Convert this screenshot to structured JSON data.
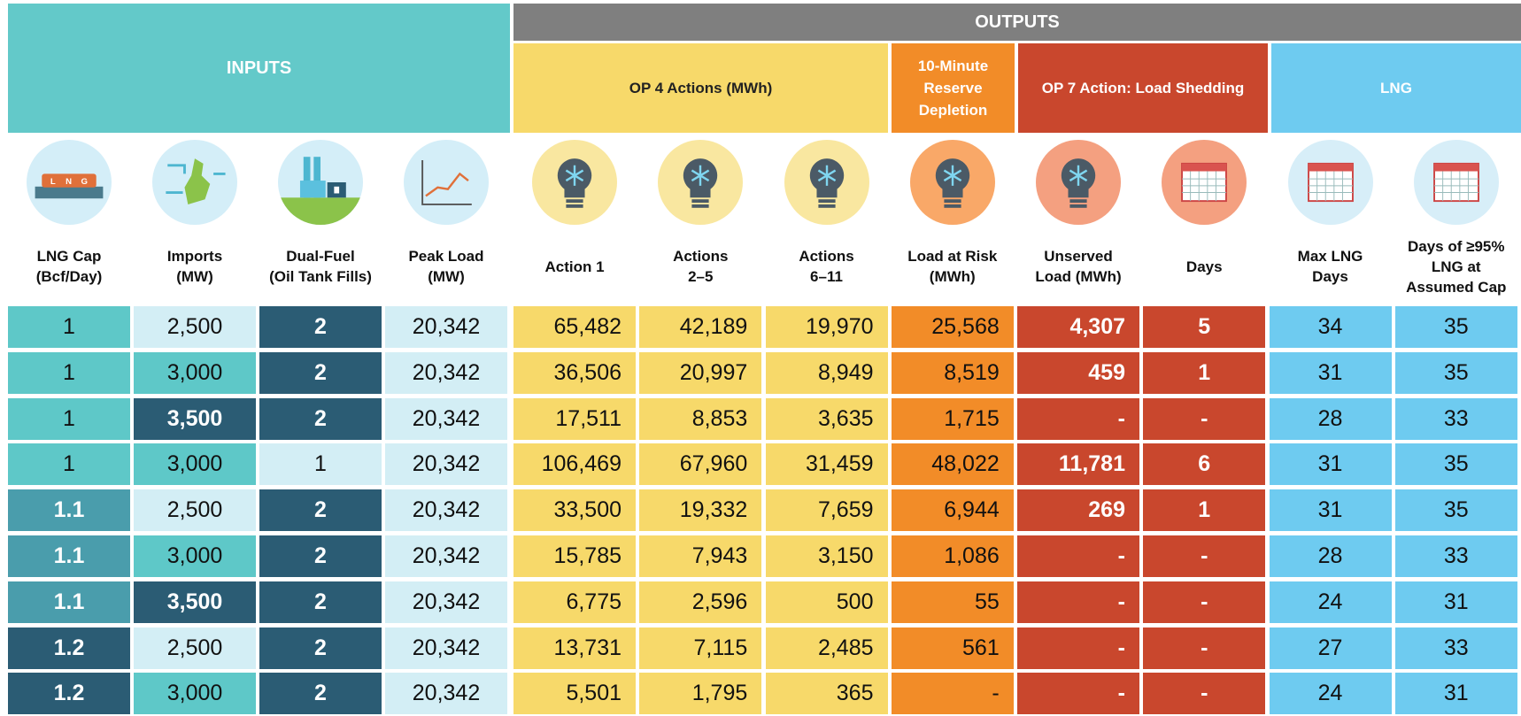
{
  "header": {
    "inputs": "INPUTS",
    "outputs": "OUTPUTS",
    "groups": [
      "OP 4 Actions (MWh)",
      "10-Minute\nReserve\nDepletion",
      "OP 7 Action: Load Shedding",
      "LNG"
    ]
  },
  "columns": [
    {
      "label": "LNG Cap\n(Bcf/Day)",
      "colors": [
        "#5ec8c8",
        "#4a9dac",
        "#2b5c74"
      ],
      "text_colors": [
        "#111",
        "#fff",
        "#fff"
      ]
    },
    {
      "label": "Imports\n(MW)",
      "colors": [
        "#d3eef5",
        "#5ec8c8",
        "#2b5c74"
      ],
      "text_colors": [
        "#111",
        "#111",
        "#fff"
      ]
    },
    {
      "label": "Dual-Fuel\n(Oil Tank Fills)",
      "colors": [
        "#d3eef5",
        "#2b5c74"
      ],
      "text_colors": [
        "#111",
        "#fff"
      ]
    },
    {
      "label": "Peak Load\n(MW)",
      "colors": [
        "#d3eef5"
      ],
      "text_colors": [
        "#111"
      ]
    },
    {
      "label": "Action 1",
      "colors": [
        "#f7d96a"
      ],
      "text_colors": [
        "#111"
      ]
    },
    {
      "label": "Actions\n2–5",
      "colors": [
        "#f7d96a"
      ],
      "text_colors": [
        "#111"
      ]
    },
    {
      "label": "Actions\n6–11",
      "colors": [
        "#f7d96a"
      ],
      "text_colors": [
        "#111"
      ]
    },
    {
      "label": "Load at Risk\n(MWh)",
      "colors": [
        "#f28c28"
      ],
      "text_colors": [
        "#111"
      ]
    },
    {
      "label": "Unserved\nLoad (MWh)",
      "colors": [
        "#c9472d"
      ],
      "text_colors": [
        "#fff"
      ]
    },
    {
      "label": "Days",
      "colors": [
        "#c9472d"
      ],
      "text_colors": [
        "#fff"
      ]
    },
    {
      "label": "Max LNG\nDays",
      "colors": [
        "#6ecbf0"
      ],
      "text_colors": [
        "#111"
      ]
    },
    {
      "label": "Days of ≥95%\nLNG at\nAssumed Cap",
      "colors": [
        "#6ecbf0"
      ],
      "text_colors": [
        "#111"
      ]
    }
  ],
  "rows": [
    [
      "1",
      "2,500",
      "2",
      "20,342",
      "65,482",
      "42,189",
      "19,970",
      "25,568",
      "4,307",
      "5",
      "34",
      "35"
    ],
    [
      "1",
      "3,000",
      "2",
      "20,342",
      "36,506",
      "20,997",
      "8,949",
      "8,519",
      "459",
      "1",
      "31",
      "35"
    ],
    [
      "1",
      "3,500",
      "2",
      "20,342",
      "17,511",
      "8,853",
      "3,635",
      "1,715",
      "-",
      "-",
      "28",
      "33"
    ],
    [
      "1",
      "3,000",
      "1",
      "20,342",
      "106,469",
      "67,960",
      "31,459",
      "48,022",
      "11,781",
      "6",
      "31",
      "35"
    ],
    [
      "1.1",
      "2,500",
      "2",
      "20,342",
      "33,500",
      "19,332",
      "7,659",
      "6,944",
      "269",
      "1",
      "31",
      "35"
    ],
    [
      "1.1",
      "3,000",
      "2",
      "20,342",
      "15,785",
      "7,943",
      "3,150",
      "1,086",
      "-",
      "-",
      "28",
      "33"
    ],
    [
      "1.1",
      "3,500",
      "2",
      "20,342",
      "6,775",
      "2,596",
      "500",
      "55",
      "-",
      "-",
      "24",
      "31"
    ],
    [
      "1.2",
      "2,500",
      "2",
      "20,342",
      "13,731",
      "7,115",
      "2,485",
      "561",
      "-",
      "-",
      "27",
      "33"
    ],
    [
      "1.2",
      "3,000",
      "2",
      "20,342",
      "5,501",
      "1,795",
      "365",
      "-",
      "-",
      "-",
      "24",
      "31"
    ]
  ]
}
